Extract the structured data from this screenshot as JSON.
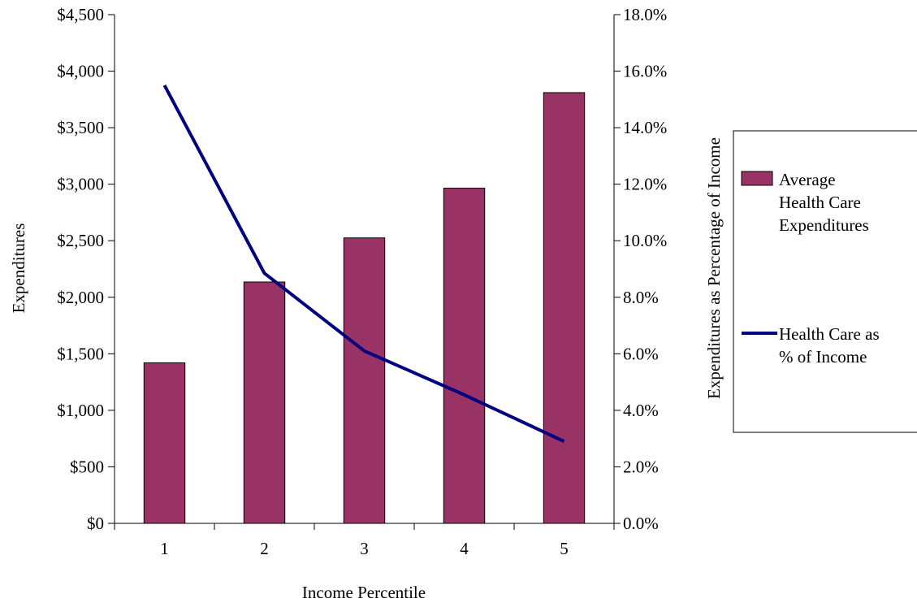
{
  "chart_data": {
    "type": "bar",
    "categories": [
      "1",
      "2",
      "3",
      "4",
      "5"
    ],
    "xlabel": "Income Percentile",
    "ylabel": "Expenditures",
    "y2label": "Expenditures as Percentage of Income",
    "ylim": [
      0,
      4500
    ],
    "y2lim": [
      0,
      18
    ],
    "yticks": [
      "$0",
      "$500",
      "$1,000",
      "$1,500",
      "$2,000",
      "$2,500",
      "$3,000",
      "$3,500",
      "$4,000",
      "$4,500"
    ],
    "y2ticks": [
      "0.0%",
      "2.0%",
      "4.0%",
      "6.0%",
      "8.0%",
      "10.0%",
      "12.0%",
      "14.0%",
      "16.0%",
      "18.0%"
    ],
    "grid": false,
    "legend_position": "right",
    "series": [
      {
        "name": "Average Health Care Expenditures",
        "name_lines": [
          "Average",
          "Health Care",
          "Expenditures"
        ],
        "type": "bar",
        "axis": "left",
        "color": "#993366",
        "values": [
          1420,
          2135,
          2525,
          2965,
          3810
        ]
      },
      {
        "name": "Health Care as % of Income",
        "name_lines": [
          "Health Care as",
          "% of Income"
        ],
        "type": "line",
        "axis": "right",
        "color": "#000080",
        "values": [
          15.5,
          8.85,
          6.1,
          4.55,
          2.9
        ]
      }
    ]
  }
}
